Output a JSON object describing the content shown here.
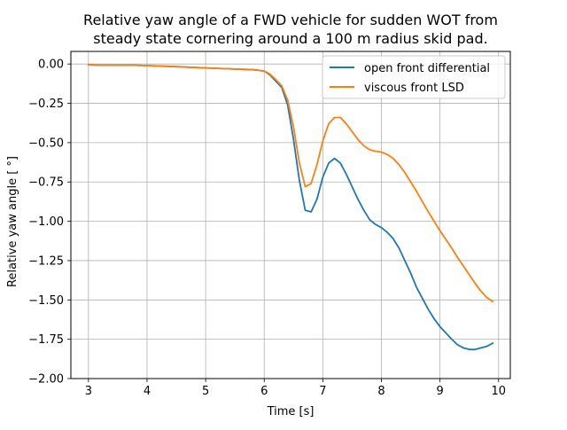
{
  "chart_data": {
    "type": "line",
    "title_lines": [
      "Relative yaw angle of a FWD vehicle for sudden WOT from",
      "steady state cornering around a 100 m radius skid pad."
    ],
    "xlabel": "Time [s]",
    "ylabel": "Relative yaw angle [ °]",
    "xlim": [
      2.7,
      10.2
    ],
    "ylim": [
      -2.0,
      0.08
    ],
    "xticks": [
      3,
      4,
      5,
      6,
      7,
      8,
      9,
      10
    ],
    "yticks": [
      0.0,
      -0.25,
      -0.5,
      -0.75,
      -1.0,
      -1.25,
      -1.5,
      -1.75,
      -2.0
    ],
    "ytick_labels": [
      "0.00",
      "−0.25",
      "−0.50",
      "−0.75",
      "−1.00",
      "−1.25",
      "−1.50",
      "−1.75",
      "−2.00"
    ],
    "grid": true,
    "legend_position": "top-right",
    "series": [
      {
        "name": "open front differential",
        "color": "#1f77b4",
        "x": [
          3.0,
          3.2,
          3.5,
          3.8,
          4.0,
          4.5,
          5.0,
          5.5,
          5.8,
          5.9,
          6.0,
          6.1,
          6.2,
          6.3,
          6.4,
          6.5,
          6.6,
          6.7,
          6.8,
          6.9,
          7.0,
          7.1,
          7.2,
          7.3,
          7.4,
          7.5,
          7.6,
          7.7,
          7.8,
          7.9,
          8.0,
          8.1,
          8.2,
          8.3,
          8.4,
          8.5,
          8.6,
          8.7,
          8.8,
          8.9,
          9.0,
          9.1,
          9.2,
          9.3,
          9.4,
          9.5,
          9.6,
          9.7,
          9.8,
          9.9
        ],
        "y": [
          -0.005,
          -0.008,
          -0.008,
          -0.008,
          -0.01,
          -0.017,
          -0.025,
          -0.032,
          -0.036,
          -0.04,
          -0.045,
          -0.07,
          -0.11,
          -0.15,
          -0.26,
          -0.48,
          -0.74,
          -0.93,
          -0.94,
          -0.86,
          -0.72,
          -0.63,
          -0.6,
          -0.63,
          -0.7,
          -0.78,
          -0.86,
          -0.93,
          -0.99,
          -1.02,
          -1.04,
          -1.07,
          -1.11,
          -1.17,
          -1.25,
          -1.33,
          -1.42,
          -1.49,
          -1.56,
          -1.62,
          -1.67,
          -1.71,
          -1.75,
          -1.785,
          -1.805,
          -1.815,
          -1.815,
          -1.805,
          -1.795,
          -1.775
        ]
      },
      {
        "name": "viscous front LSD",
        "color": "#ff7f0e",
        "x": [
          3.0,
          3.2,
          3.5,
          3.8,
          4.0,
          4.5,
          5.0,
          5.5,
          5.8,
          5.9,
          6.0,
          6.1,
          6.2,
          6.3,
          6.4,
          6.5,
          6.6,
          6.7,
          6.8,
          6.9,
          7.0,
          7.1,
          7.2,
          7.3,
          7.4,
          7.5,
          7.6,
          7.7,
          7.8,
          7.9,
          8.0,
          8.1,
          8.2,
          8.3,
          8.4,
          8.5,
          8.6,
          8.7,
          8.8,
          8.9,
          9.0,
          9.1,
          9.2,
          9.3,
          9.4,
          9.5,
          9.6,
          9.7,
          9.8,
          9.9
        ],
        "y": [
          -0.005,
          -0.008,
          -0.008,
          -0.008,
          -0.01,
          -0.017,
          -0.025,
          -0.032,
          -0.036,
          -0.04,
          -0.045,
          -0.065,
          -0.1,
          -0.14,
          -0.23,
          -0.4,
          -0.63,
          -0.78,
          -0.76,
          -0.64,
          -0.49,
          -0.38,
          -0.34,
          -0.34,
          -0.38,
          -0.43,
          -0.48,
          -0.52,
          -0.545,
          -0.555,
          -0.56,
          -0.575,
          -0.6,
          -0.64,
          -0.69,
          -0.75,
          -0.81,
          -0.875,
          -0.94,
          -1.0,
          -1.06,
          -1.115,
          -1.17,
          -1.23,
          -1.285,
          -1.34,
          -1.395,
          -1.445,
          -1.485,
          -1.51
        ]
      }
    ]
  }
}
